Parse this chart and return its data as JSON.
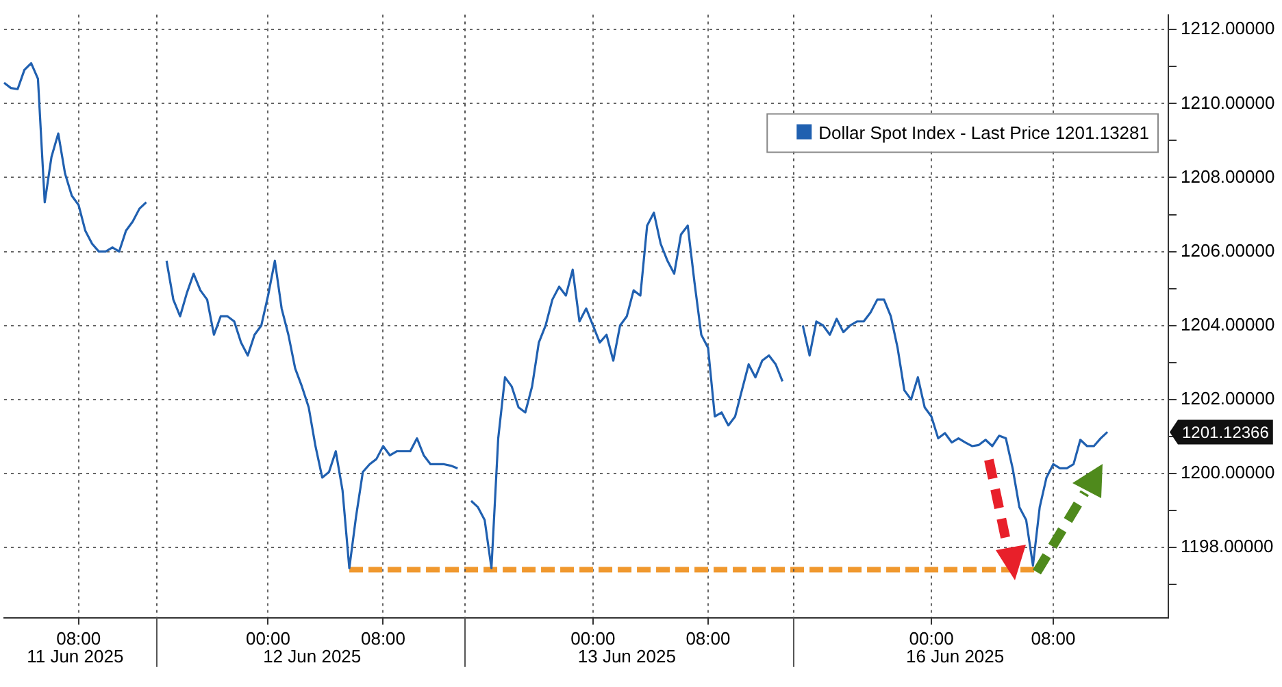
{
  "chart_data": {
    "type": "line",
    "categories": [
      null,
      null,
      null,
      null,
      null,
      null,
      null,
      null,
      null,
      null,
      null,
      "08:00",
      null,
      null,
      null,
      null,
      null,
      null,
      null,
      null,
      null,
      null,
      null,
      null,
      null,
      null,
      null,
      null,
      null,
      null,
      null,
      null,
      null,
      null,
      null,
      null,
      null,
      null,
      null,
      "00:00",
      null,
      null,
      null,
      null,
      null,
      null,
      null,
      null,
      null,
      null,
      null,
      null,
      null,
      null,
      null,
      null,
      "08:00",
      null,
      null,
      null,
      null,
      null,
      null,
      null,
      null,
      null,
      null,
      null,
      null,
      null,
      null,
      null,
      null,
      null,
      null,
      null,
      null,
      null,
      null,
      null,
      null,
      null,
      null,
      null,
      null,
      null,
      null,
      "00:00",
      null,
      null,
      null,
      null,
      null,
      null,
      null,
      null,
      null,
      null,
      null,
      null,
      null,
      null,
      null,
      null,
      "08:00",
      null,
      null,
      null,
      null,
      null,
      null,
      null,
      null,
      null,
      null,
      null,
      null,
      null,
      null,
      null,
      null,
      null,
      null,
      null,
      null,
      null,
      null,
      null,
      null,
      null,
      null,
      null,
      null,
      null,
      null,
      null,
      null,
      "00:00",
      null,
      null,
      null,
      null,
      null,
      null,
      null,
      null,
      null,
      null,
      null,
      null,
      null,
      null,
      null,
      null,
      null,
      "08:00",
      null,
      null,
      null,
      null,
      null,
      null,
      null,
      null,
      null,
      null,
      null,
      null,
      null,
      null,
      null,
      null,
      null
    ],
    "series": [
      {
        "name": "Dollar Spot Index - Last Price 1201.13281",
        "color": "#2060b0",
        "line_style": "solid",
        "values": [
          1210.56,
          1210.42,
          1210.39,
          1210.91,
          1211.09,
          1210.67,
          1207.33,
          1208.56,
          1209.19,
          1208.11,
          1207.51,
          1207.26,
          1206.56,
          1206.21,
          1206.0,
          1206.0,
          1206.11,
          1206.0,
          1206.56,
          1206.81,
          1207.16,
          1207.33,
          null,
          null,
          1205.75,
          1204.7,
          1204.25,
          1204.88,
          1205.4,
          1204.95,
          1204.7,
          1203.75,
          1204.25,
          1204.25,
          1204.11,
          1203.54,
          1203.19,
          1203.75,
          1204.0,
          1204.81,
          1205.75,
          1204.46,
          1203.75,
          1202.84,
          1202.35,
          1201.79,
          1200.74,
          1199.89,
          1200.04,
          1200.6,
          1199.54,
          1197.44,
          1198.84,
          1200.04,
          1200.25,
          1200.39,
          1200.74,
          1200.49,
          1200.6,
          1200.6,
          1200.6,
          1200.95,
          1200.49,
          1200.25,
          1200.25,
          1200.25,
          1200.21,
          1200.14,
          null,
          1199.26,
          1199.09,
          1198.74,
          1197.44,
          1200.95,
          1202.6,
          1202.35,
          1201.79,
          1201.65,
          1202.35,
          1203.54,
          1204.0,
          1204.7,
          1205.05,
          1204.81,
          1205.51,
          1204.11,
          1204.46,
          1204.0,
          1203.54,
          1203.75,
          1203.05,
          1204.0,
          1204.25,
          1204.95,
          1204.81,
          1206.7,
          1207.05,
          1206.21,
          1205.75,
          1205.4,
          1206.46,
          1206.7,
          1205.16,
          1203.75,
          1203.4,
          1201.54,
          1201.65,
          1201.3,
          1201.54,
          1202.25,
          1202.95,
          1202.6,
          1203.05,
          1203.19,
          1202.95,
          1202.49,
          null,
          null,
          1204.0,
          1203.19,
          1204.11,
          1204.0,
          1203.75,
          1204.18,
          1203.82,
          1204.0,
          1204.11,
          1204.11,
          1204.35,
          1204.7,
          1204.7,
          1204.25,
          1203.4,
          1202.25,
          1202.0,
          1202.6,
          1201.79,
          1201.54,
          1200.95,
          1201.09,
          1200.84,
          1200.95,
          1200.84,
          1200.74,
          1200.77,
          1200.91,
          1200.74,
          1201.02,
          1200.95,
          1200.14,
          1199.09,
          1198.74,
          1197.51,
          1199.09,
          1199.89,
          1200.25,
          1200.14,
          1200.14,
          1200.25,
          1200.91,
          1200.74,
          1200.74,
          1200.95,
          1201.12,
          null,
          null,
          null,
          null,
          null,
          null,
          null,
          null,
          null
        ]
      },
      {
        "color": "#f0982e",
        "line_style": "dashed",
        "values": [
          null,
          null,
          null,
          null,
          null,
          null,
          null,
          null,
          null,
          null,
          null,
          null,
          null,
          null,
          null,
          null,
          null,
          null,
          null,
          null,
          null,
          null,
          null,
          null,
          null,
          null,
          null,
          null,
          null,
          null,
          null,
          null,
          null,
          null,
          null,
          null,
          null,
          null,
          null,
          null,
          null,
          null,
          null,
          null,
          null,
          null,
          null,
          null,
          null,
          null,
          null,
          1197.4,
          null,
          null,
          null,
          null,
          null,
          null,
          null,
          null,
          null,
          null,
          null,
          null,
          null,
          null,
          null,
          null,
          null,
          null,
          null,
          null,
          null,
          null,
          null,
          null,
          null,
          null,
          null,
          null,
          null,
          null,
          null,
          null,
          null,
          null,
          null,
          null,
          null,
          null,
          null,
          null,
          null,
          null,
          null,
          null,
          null,
          null,
          null,
          null,
          null,
          null,
          null,
          null,
          null,
          null,
          null,
          null,
          null,
          null,
          null,
          null,
          null,
          null,
          null,
          null,
          null,
          null,
          null,
          null,
          null,
          null,
          null,
          null,
          null,
          null,
          null,
          null,
          null,
          null,
          null,
          null,
          null,
          null,
          null,
          null,
          null,
          null,
          null,
          null,
          null,
          null,
          null,
          null,
          null,
          null,
          null,
          null,
          null,
          null,
          null,
          null,
          null,
          1197.4,
          null,
          null,
          null,
          null,
          null,
          null,
          null,
          null,
          null,
          null,
          null,
          null,
          null,
          null,
          null,
          null,
          null,
          null,
          null
        ]
      }
    ],
    "ylim": [
      1196.1,
      1212.4
    ],
    "yticks": [
      {
        "value": 1197,
        "label": null
      },
      {
        "value": 1198,
        "label": "1198.00000"
      },
      {
        "value": 1199,
        "label": null
      },
      {
        "value": 1200,
        "label": "1200.00000"
      },
      {
        "value": 1201,
        "label": null
      },
      {
        "value": 1202,
        "label": "1202.00000"
      },
      {
        "value": 1203,
        "label": null
      },
      {
        "value": 1204,
        "label": "1204.00000"
      },
      {
        "value": 1205,
        "label": null
      },
      {
        "value": 1206,
        "label": "1206.00000"
      },
      {
        "value": 1207,
        "label": null
      },
      {
        "value": 1208,
        "label": "1208.00000"
      },
      {
        "value": 1209,
        "label": null
      },
      {
        "value": 1210,
        "label": "1210.00000"
      },
      {
        "value": 1211,
        "label": null
      },
      {
        "value": 1212,
        "label": "1212.00000"
      }
    ],
    "annotations": [
      "11 Jun 2025",
      "12 Jun 2025",
      "13 Jun 2025",
      "16 Jun 2025",
      "1201.12366"
    ],
    "grid": true,
    "legend": "top right",
    "marker": "none"
  }
}
